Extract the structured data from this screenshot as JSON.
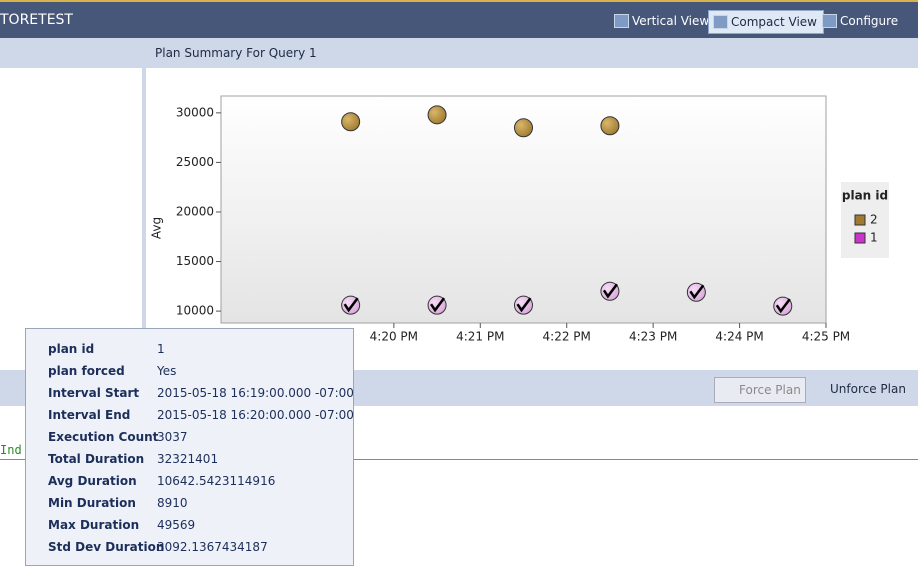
{
  "header": {
    "title": "TORETEST",
    "buttons": [
      "Vertical View",
      "Compact View",
      "Configure"
    ]
  },
  "plan_pane": {
    "title": "Plan Summary For Query 1"
  },
  "chart_data": {
    "type": "scatter",
    "y_label": "Avg",
    "legend_title": "plan id",
    "legend": "right",
    "x": [
      979.5,
      980.5,
      981.5,
      982.5,
      983.5,
      984.5
    ],
    "series": [
      {
        "name": "2",
        "color": "#a07a32",
        "values": [
          29100,
          29800,
          28500,
          28700,
          null,
          null
        ]
      },
      {
        "name": "1",
        "color": "#cc33cc",
        "values": [
          10600,
          10600,
          10600,
          12000,
          11900,
          10500
        ]
      }
    ],
    "xlim": [
      978,
      985
    ],
    "xticks": [
      {
        "value": 980,
        "label": "4:20 PM"
      },
      {
        "value": 981,
        "label": "4:21 PM"
      },
      {
        "value": 982,
        "label": "4:22 PM"
      },
      {
        "value": 983,
        "label": "4:23 PM"
      },
      {
        "value": 984,
        "label": "4:24 PM"
      },
      {
        "value": 985,
        "label": "4:25 PM"
      }
    ],
    "ylim": [
      8800,
      31700
    ],
    "yticks": [
      10000,
      15000,
      20000,
      25000,
      30000
    ]
  },
  "plan_toolbar": {
    "buttons": [
      "Force Plan",
      "Unforce Plan"
    ]
  },
  "code_text": "Ind",
  "tooltip": {
    "rows": [
      [
        "plan id",
        "1"
      ],
      [
        "plan forced",
        "Yes"
      ],
      [
        "Interval Start",
        "2015-05-18 16:19:00.000 -07:00"
      ],
      [
        "Interval End",
        "2015-05-18 16:20:00.000 -07:00"
      ],
      [
        "Execution Count",
        "3037"
      ],
      [
        "Total Duration",
        "32321401"
      ],
      [
        "Avg Duration",
        "10642.5423114916"
      ],
      [
        "Min Duration",
        "8910"
      ],
      [
        "Max Duration",
        "49569"
      ],
      [
        "Std Dev Duration",
        "3092.1367434187"
      ]
    ]
  }
}
